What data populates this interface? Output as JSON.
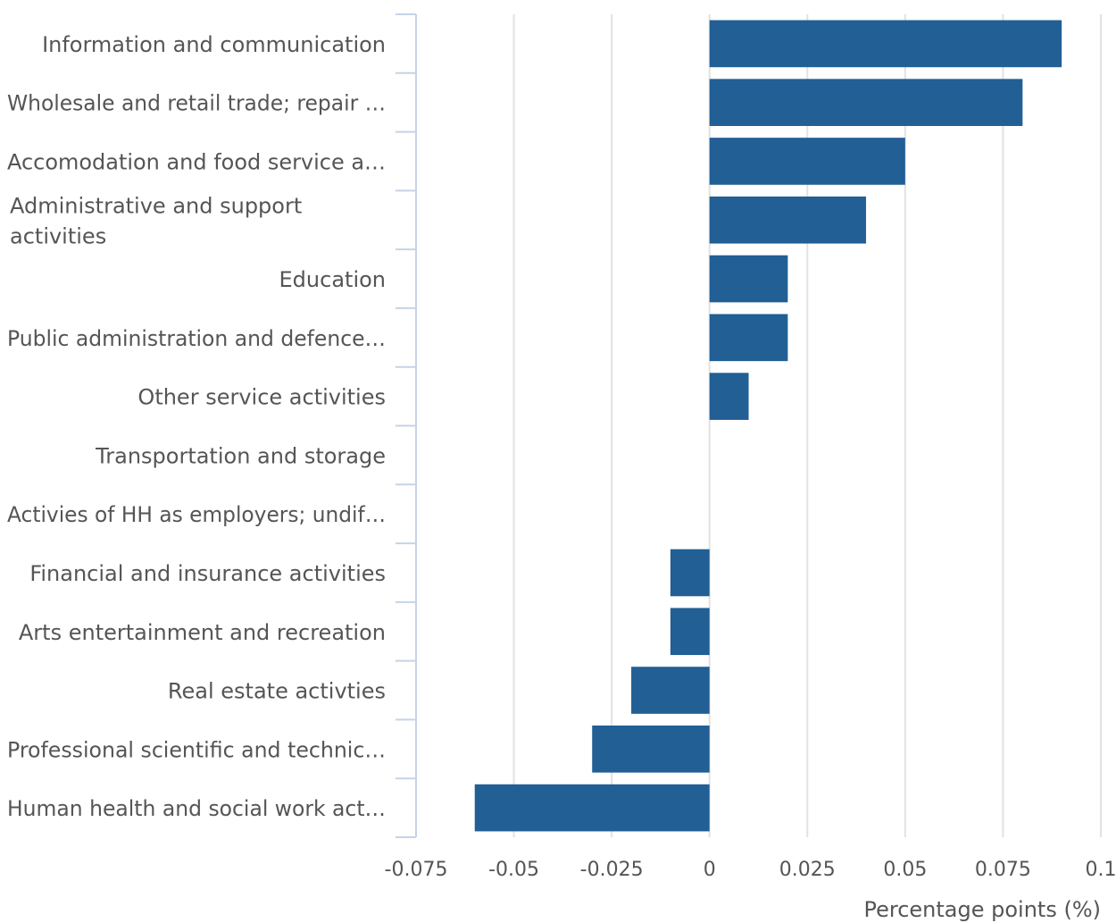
{
  "chart_data": {
    "type": "bar",
    "orientation": "horizontal",
    "title": "",
    "xlabel": "Percentage points (%)",
    "ylabel": "",
    "xlim": [
      -0.075,
      0.1
    ],
    "x_ticks": [
      -0.075,
      -0.05,
      -0.025,
      0,
      0.025,
      0.05,
      0.075,
      0.1
    ],
    "x_tick_labels": [
      "-0.075",
      "-0.05",
      "-0.025",
      "0",
      "0.025",
      "0.05",
      "0.075",
      "0.1"
    ],
    "grid": "vertical",
    "legend": "none",
    "bar_color": "#215f95",
    "categories": [
      {
        "label_lines": [
          "Information and communication"
        ],
        "value": 0.09
      },
      {
        "label_lines": [
          "Wholesale and retail trade; repair …"
        ],
        "value": 0.08
      },
      {
        "label_lines": [
          "Accomodation and food service a…"
        ],
        "value": 0.05
      },
      {
        "label_lines": [
          "Administrative and support",
          "activities"
        ],
        "value": 0.04
      },
      {
        "label_lines": [
          "Education"
        ],
        "value": 0.02
      },
      {
        "label_lines": [
          "Public administration and defence…"
        ],
        "value": 0.02
      },
      {
        "label_lines": [
          "Other service activities"
        ],
        "value": 0.01
      },
      {
        "label_lines": [
          "Transportation and storage"
        ],
        "value": 0
      },
      {
        "label_lines": [
          "Activies of HH as employers; undif…"
        ],
        "value": 0
      },
      {
        "label_lines": [
          "Financial and insurance activities"
        ],
        "value": -0.01
      },
      {
        "label_lines": [
          "Arts entertainment and recreation"
        ],
        "value": -0.01
      },
      {
        "label_lines": [
          "Real estate activties"
        ],
        "value": -0.02
      },
      {
        "label_lines": [
          "Professional scientific and technic…"
        ],
        "value": -0.03
      },
      {
        "label_lines": [
          "Human health and social work act…"
        ],
        "value": -0.06
      }
    ]
  }
}
